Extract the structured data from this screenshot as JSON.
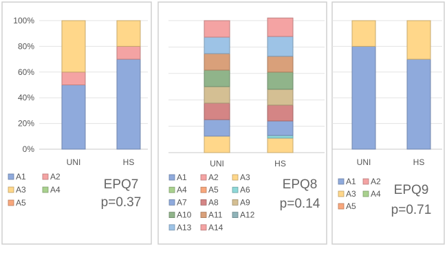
{
  "chart_data": [
    {
      "type": "bar",
      "stacked": true,
      "normalized": true,
      "title": "EPQ7",
      "annotation": "p=0.37",
      "categories": [
        "UNI",
        "HS"
      ],
      "yticks": [
        "0%",
        "20%",
        "40%",
        "60%",
        "80%",
        "100%"
      ],
      "ylim": [
        0,
        100
      ],
      "grid": true,
      "legend_position": "bottom",
      "series": [
        {
          "name": "A1",
          "color": "#8faadc",
          "values": [
            50,
            70
          ]
        },
        {
          "name": "A2",
          "color": "#f4a3a3",
          "values": [
            10,
            10
          ]
        },
        {
          "name": "A3",
          "color": "#ffd78a",
          "values": [
            40,
            20
          ]
        },
        {
          "name": "A4",
          "color": "#a9d18e",
          "values": [
            0,
            0
          ]
        },
        {
          "name": "A5",
          "color": "#f8a77c",
          "values": [
            0,
            0
          ]
        }
      ]
    },
    {
      "type": "bar",
      "stacked": true,
      "normalized": true,
      "title": "EPQ8",
      "annotation": "p=0.14",
      "categories": [
        "UNI",
        "HS"
      ],
      "ylim": [
        0,
        100
      ],
      "grid": true,
      "legend_position": "bottom",
      "series": [
        {
          "name": "A1",
          "color": "#8faadc",
          "values": [
            0,
            0
          ]
        },
        {
          "name": "A2",
          "color": "#f4a3a3",
          "values": [
            0,
            0
          ]
        },
        {
          "name": "A3",
          "color": "#ffd78a",
          "values": [
            12.5,
            11
          ]
        },
        {
          "name": "A4",
          "color": "#a9d18e",
          "values": [
            0,
            0
          ]
        },
        {
          "name": "A5",
          "color": "#f8a77c",
          "values": [
            0,
            0
          ]
        },
        {
          "name": "A6",
          "color": "#8ed8d8",
          "values": [
            0,
            2
          ]
        },
        {
          "name": "A7",
          "color": "#8faadc",
          "values": [
            12.5,
            11
          ]
        },
        {
          "name": "A8",
          "color": "#d48585",
          "values": [
            12.5,
            12
          ]
        },
        {
          "name": "A9",
          "color": "#d4bf93",
          "values": [
            12.5,
            12
          ]
        },
        {
          "name": "A10",
          "color": "#90b48a",
          "values": [
            12.5,
            13
          ]
        },
        {
          "name": "A11",
          "color": "#d9a07a",
          "values": [
            12.5,
            12
          ]
        },
        {
          "name": "A12",
          "color": "#8fb3b8",
          "values": [
            0,
            0
          ]
        },
        {
          "name": "A13",
          "color": "#9dc3e6",
          "values": [
            12.5,
            15
          ]
        },
        {
          "name": "A14",
          "color": "#f4a3a3",
          "values": [
            12.5,
            14
          ]
        }
      ]
    },
    {
      "type": "bar",
      "stacked": true,
      "normalized": true,
      "title": "EPQ9",
      "annotation": "p=0.71",
      "categories": [
        "UNI",
        "HS"
      ],
      "ylim": [
        0,
        100
      ],
      "grid": true,
      "legend_position": "bottom",
      "series": [
        {
          "name": "A1",
          "color": "#8faadc",
          "values": [
            80,
            70
          ]
        },
        {
          "name": "A2",
          "color": "#f4a3a3",
          "values": [
            0,
            0
          ]
        },
        {
          "name": "A3",
          "color": "#ffd78a",
          "values": [
            20,
            30
          ]
        },
        {
          "name": "A4",
          "color": "#a9d18e",
          "values": [
            0,
            0
          ]
        },
        {
          "name": "A5",
          "color": "#f8a77c",
          "values": [
            0,
            0
          ]
        }
      ]
    }
  ]
}
